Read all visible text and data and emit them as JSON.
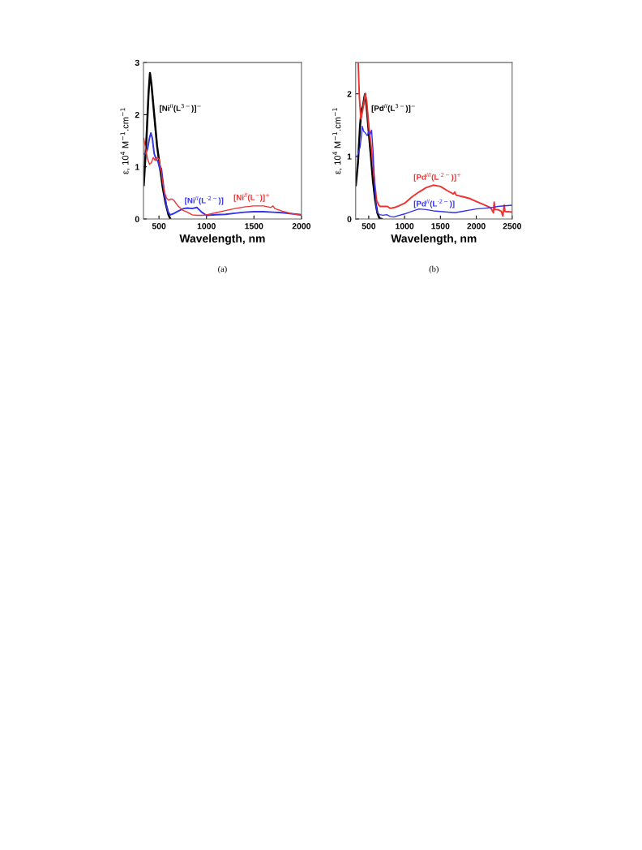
{
  "chart_data": [
    {
      "type": "line",
      "xlabel": "Wavelength, nm",
      "ylabel": "ε, 10$^{4}$ M$^{−1}$.cm$^{−1}$",
      "annotations": [
        "(a)"
      ],
      "xlim": [
        337,
        2000
      ],
      "ylim": [
        0,
        3
      ],
      "xticks": [
        500,
        1000,
        1500,
        2000
      ],
      "yticks": [
        0,
        1,
        2,
        3
      ],
      "grid": false,
      "legend": false,
      "marker": "none",
      "line_style": "solid",
      "series": [
        {
          "name": "[Ni$^{II}$(L$^{3−}$)]$^{−}$",
          "color": "#000000",
          "x": [
            340,
            370,
            390,
            405,
            420,
            450,
            480,
            510,
            540,
            570,
            600,
            620
          ],
          "values": [
            0.65,
            1.6,
            2.4,
            2.8,
            2.6,
            2.0,
            1.4,
            1.0,
            0.6,
            0.3,
            0.08,
            0
          ]
        },
        {
          "name": "[Ni$^{II}$(L$^{·2−}$)]",
          "color": "#3333ee",
          "x": [
            340,
            360,
            380,
            400,
            415,
            430,
            450,
            470,
            490,
            510,
            525,
            540,
            560,
            580,
            600,
            620,
            650,
            700,
            760,
            800,
            850,
            900,
            950,
            1000,
            1100,
            1200,
            1300,
            1400,
            1500,
            1600,
            1700,
            1800,
            1900,
            2000
          ],
          "values": [
            1.25,
            1.25,
            1.35,
            1.55,
            1.65,
            1.55,
            1.25,
            1.15,
            1.1,
            0.95,
            0.97,
            0.75,
            0.45,
            0.25,
            0.12,
            0.08,
            0.1,
            0.15,
            0.2,
            0.21,
            0.2,
            0.22,
            0.13,
            0.07,
            0.08,
            0.09,
            0.11,
            0.13,
            0.14,
            0.14,
            0.13,
            0.12,
            0.1,
            0.08
          ]
        },
        {
          "name": "[Ni$^{II}$(L$^{−}$)]$^{+}$",
          "color": "#ee3333",
          "x": [
            340,
            360,
            380,
            400,
            420,
            440,
            460,
            480,
            500,
            520,
            540,
            560,
            580,
            600,
            620,
            640,
            660,
            700,
            750,
            800,
            850,
            900,
            950,
            1000,
            1100,
            1200,
            1300,
            1400,
            1500,
            1600,
            1680,
            1700,
            1720,
            1800,
            1900,
            2000
          ],
          "values": [
            1.55,
            1.35,
            1.15,
            1.05,
            1.08,
            1.18,
            1.12,
            1.18,
            1.15,
            0.95,
            0.7,
            0.5,
            0.4,
            0.36,
            0.38,
            0.38,
            0.35,
            0.25,
            0.17,
            0.13,
            0.08,
            0.07,
            0.07,
            0.08,
            0.12,
            0.16,
            0.2,
            0.23,
            0.25,
            0.25,
            0.22,
            0.25,
            0.2,
            0.15,
            0.1,
            0.07
          ]
        }
      ]
    },
    {
      "type": "line",
      "xlabel": "Wavelength, nm",
      "ylabel": "ε, 10$^{4}$ M$^{−1}$.cm$^{−1}$",
      "annotations": [
        "(b)"
      ],
      "xlim": [
        318,
        2500
      ],
      "ylim": [
        0,
        2.5
      ],
      "xticks": [
        500,
        1000,
        1500,
        2000,
        2500
      ],
      "yticks": [
        0,
        1,
        2
      ],
      "grid": false,
      "legend": false,
      "marker": "none",
      "line_style": "solid",
      "series": [
        {
          "name": "[Pd$^{II}$(L$^{3−}$)]$^{−}$",
          "color": "#000000",
          "x": [
            320,
            350,
            380,
            400,
            420,
            440,
            450,
            470,
            500,
            530,
            560,
            590,
            620,
            650,
            680
          ],
          "values": [
            0.54,
            0.9,
            1.5,
            1.75,
            1.8,
            1.95,
            2.0,
            1.8,
            1.4,
            1.0,
            0.6,
            0.3,
            0.1,
            0.01,
            0
          ]
        },
        {
          "name": "[Pd$^{III}$(L$^{·2−}$)]$^{+}$",
          "color": "#ee3333",
          "x": [
            353,
            370,
            390,
            410,
            440,
            450,
            470,
            500,
            540,
            580,
            610,
            640,
            660,
            700,
            760,
            800,
            850,
            900,
            1000,
            1100,
            1200,
            1300,
            1400,
            1500,
            1600,
            1680,
            1700,
            1720,
            1800,
            1900,
            2000,
            2100,
            2200,
            2240,
            2250,
            2260,
            2300,
            2350,
            2370,
            2390,
            2400,
            2500
          ],
          "values": [
            2.5,
            1.95,
            1.6,
            1.7,
            1.9,
            2.0,
            1.9,
            1.5,
            1.1,
            0.6,
            0.3,
            0.22,
            0.2,
            0.2,
            0.2,
            0.17,
            0.18,
            0.2,
            0.25,
            0.35,
            0.43,
            0.5,
            0.54,
            0.52,
            0.45,
            0.4,
            0.43,
            0.38,
            0.36,
            0.33,
            0.28,
            0.23,
            0.18,
            0.1,
            0.27,
            0.15,
            0.15,
            0.12,
            0.05,
            0.22,
            0.12,
            0.11
          ]
        },
        {
          "name": "[Pd$^{II}$(L$^{·2−}$)]",
          "color": "#3333ee",
          "x": [
            320,
            340,
            360,
            380,
            400,
            410,
            430,
            450,
            480,
            500,
            520,
            540,
            560,
            580,
            600,
            620,
            650,
            700,
            750,
            800,
            850,
            900,
            1000,
            1100,
            1200,
            1300,
            1400,
            1500,
            1600,
            1700,
            1800,
            1900,
            2000,
            2100,
            2200,
            2300,
            2400,
            2500
          ],
          "values": [
            1.0,
            1.0,
            1.07,
            1.15,
            1.35,
            1.48,
            1.4,
            1.38,
            1.33,
            1.4,
            1.35,
            1.42,
            1.1,
            0.6,
            0.25,
            0.1,
            0.07,
            0.06,
            0.07,
            0.04,
            0.03,
            0.05,
            0.08,
            0.12,
            0.16,
            0.15,
            0.13,
            0.12,
            0.11,
            0.1,
            0.12,
            0.14,
            0.16,
            0.17,
            0.18,
            0.2,
            0.21,
            0.22
          ]
        }
      ]
    }
  ]
}
